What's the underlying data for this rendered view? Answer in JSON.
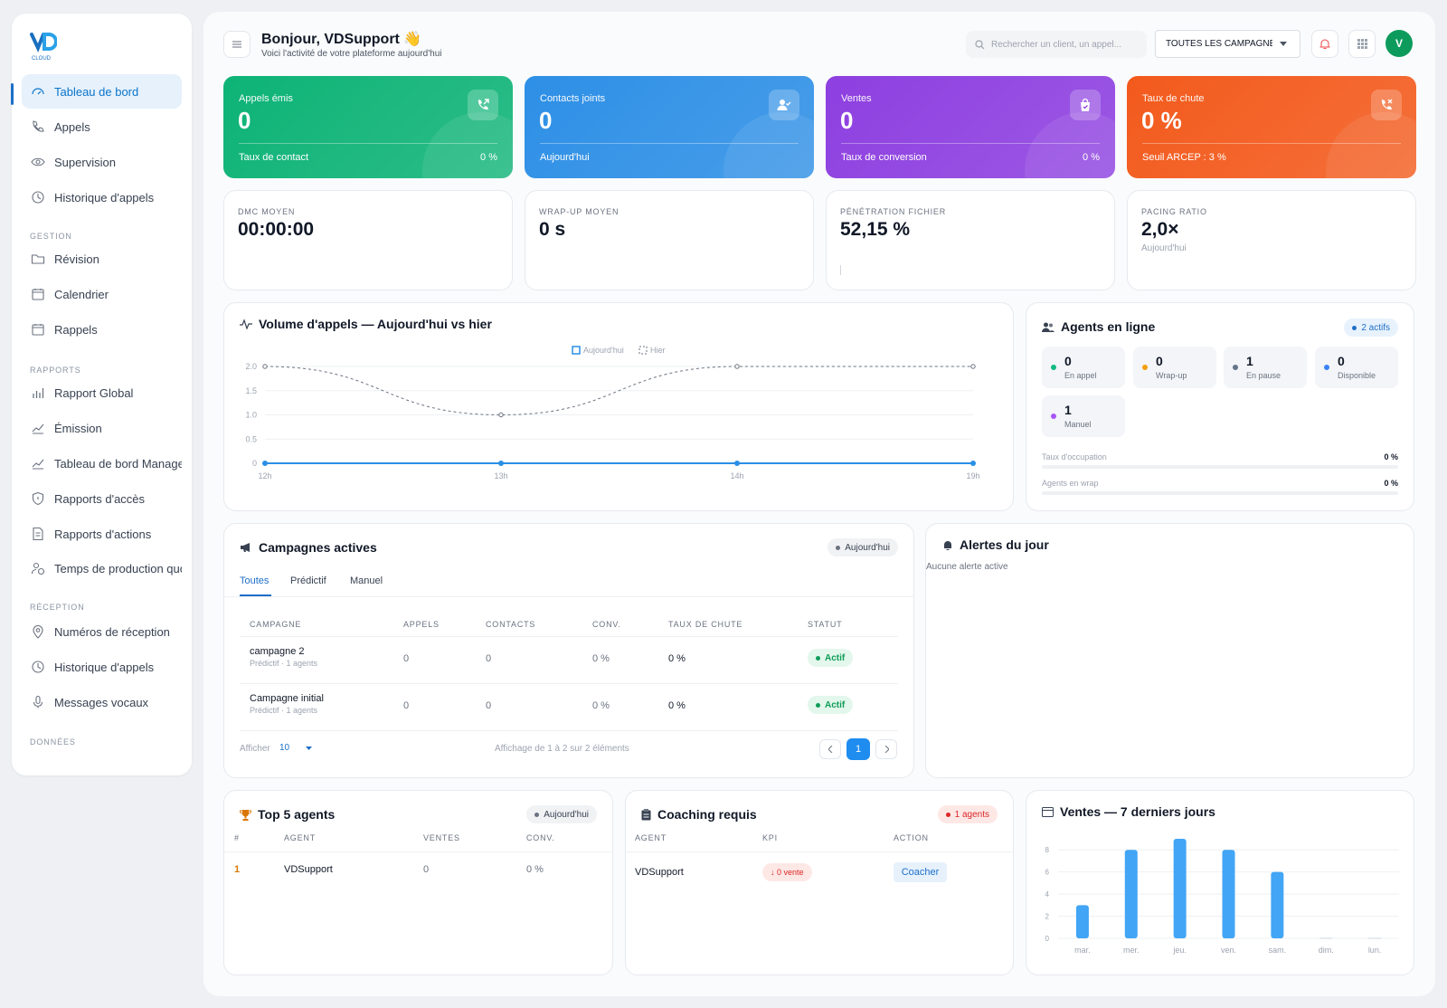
{
  "brand": {
    "logo": "VD",
    "sub": "CLOUD"
  },
  "sidebar": {
    "items": [
      {
        "label": "Tableau de bord",
        "icon": "gauge-icon"
      },
      {
        "label": "Appels",
        "icon": "phone-icon"
      },
      {
        "label": "Supervision",
        "icon": "eye-icon"
      },
      {
        "label": "Historique d'appels",
        "icon": "clock-icon"
      },
      {
        "label": "Révision",
        "icon": "folder-icon"
      },
      {
        "label": "Calendrier",
        "icon": "calendar-icon"
      },
      {
        "label": "Rappels",
        "icon": "calendar-icon"
      },
      {
        "label": "Rapport Global",
        "icon": "bar-chart-icon"
      },
      {
        "label": "Émission",
        "icon": "trend-icon"
      },
      {
        "label": "Tableau de bord Manager",
        "icon": "trend-icon"
      },
      {
        "label": "Rapports d'accès",
        "icon": "shield-icon"
      },
      {
        "label": "Rapports d'actions",
        "icon": "document-icon"
      },
      {
        "label": "Temps de production quotidien",
        "icon": "user-clock-icon"
      },
      {
        "label": "Numéros de réception",
        "icon": "pin-icon"
      },
      {
        "label": "Historique d'appels",
        "icon": "clock-icon"
      },
      {
        "label": "Messages vocaux",
        "icon": "mic-icon"
      }
    ],
    "sections": [
      "GESTION",
      "RAPPORTS",
      "RÉCEPTION",
      "DONNÉES"
    ]
  },
  "header": {
    "greeting": "Bonjour, VDSupport 👋",
    "subtitle": "Voici l'activité de votre plateforme aujourd'hui",
    "search_placeholder": "Rechercher un client, un appel...",
    "campaign_select": "TOUTES LES CAMPAGNES",
    "avatar": "V"
  },
  "kpis": [
    {
      "label": "Appels émis",
      "value": "0",
      "footer": "Taux de contact",
      "footer_value": "0 %",
      "color": "#0db376"
    },
    {
      "label": "Contacts joints",
      "value": "0",
      "footer": "Aujourd'hui",
      "footer_value": "",
      "color": "#2d8fe6"
    },
    {
      "label": "Ventes",
      "value": "0",
      "footer": "Taux de conversion",
      "footer_value": "0 %",
      "color": "#8d3fe0"
    },
    {
      "label": "Taux de chute",
      "value": "0 %",
      "footer": "Seuil ARCEP : 3 %",
      "footer_value": "",
      "color": "#f35a1c"
    }
  ],
  "stats": [
    {
      "label": "DMC MOYEN",
      "value": "00:00:00",
      "sub": ""
    },
    {
      "label": "WRAP-UP MOYEN",
      "value": "0 s",
      "sub": ""
    },
    {
      "label": "PÉNÉTRATION FICHIER",
      "value": "52,15 %",
      "sub": ""
    },
    {
      "label": "PACING RATIO",
      "value": "2,0×",
      "sub": "Aujourd'hui"
    }
  ],
  "volume": {
    "title": "Volume d'appels — Aujourd'hui vs hier",
    "legend_today": "Aujourd'hui",
    "legend_yesterday": "Hier"
  },
  "chart_data": [
    {
      "type": "line",
      "title": "Volume d'appels — Aujourd'hui vs hier",
      "x": [
        "12h",
        "13h",
        "14h",
        "19h"
      ],
      "series": [
        {
          "name": "Aujourd'hui",
          "values": [
            0,
            0,
            0,
            0
          ]
        },
        {
          "name": "Hier",
          "values": [
            2,
            1,
            2,
            2
          ]
        }
      ],
      "ylim": [
        0,
        2
      ],
      "yticks": [
        "0",
        "0.5",
        "1.0",
        "1.5",
        "2.0"
      ],
      "grid": true,
      "legend": "top-center"
    },
    {
      "type": "bar",
      "title": "Ventes — 7 derniers jours",
      "categories": [
        "mar.",
        "mer.",
        "jeu.",
        "ven.",
        "sam.",
        "dim.",
        "lun."
      ],
      "values": [
        3,
        8,
        9,
        8,
        6,
        0,
        0
      ],
      "ylim": [
        0,
        9
      ],
      "yticks": [
        "0",
        "2",
        "4",
        "6",
        "8"
      ],
      "grid": true
    }
  ],
  "agents": {
    "title": "Agents en ligne",
    "badge": "2 actifs",
    "tiles": [
      {
        "value": "0",
        "label": "En appel",
        "color": "#10b981"
      },
      {
        "value": "0",
        "label": "Wrap-up",
        "color": "#f59e0b"
      },
      {
        "value": "1",
        "label": "En pause",
        "color": "#64748b"
      },
      {
        "value": "0",
        "label": "Disponible",
        "color": "#3b82f6"
      },
      {
        "value": "1",
        "label": "Manuel",
        "color": "#a855f7"
      }
    ],
    "occupation_label": "Taux d'occupation",
    "occupation_value": "0 %",
    "occupation": 0,
    "wrap_label": "Agents en wrap",
    "wrap_value": "0 %",
    "wrap": 0
  },
  "campaigns": {
    "title": "Campagnes actives",
    "badge": "Aujourd'hui",
    "tabs": [
      "Toutes",
      "Prédictif",
      "Manuel"
    ],
    "headers": [
      "CAMPAGNE",
      "APPELS",
      "CONTACTS",
      "CONV.",
      "TAUX DE CHUTE",
      "STATUT"
    ],
    "rows": [
      {
        "name": "campagne 2",
        "sub": "Prédictif · 1 agents",
        "appels": "0",
        "contacts": "0",
        "conv": "0 %",
        "chute": "0 %",
        "statut": "Actif"
      },
      {
        "name": "Campagne initial",
        "sub": "Prédictif · 1 agents",
        "appels": "0",
        "contacts": "0",
        "conv": "0 %",
        "chute": "0 %",
        "statut": "Actif"
      }
    ],
    "show_label": "Afficher",
    "page_size": "10",
    "summary": "Affichage de 1 à 2 sur 2 éléments",
    "page": "1"
  },
  "alerts": {
    "title": "Alertes du jour",
    "empty": "Aucune alerte active"
  },
  "top_agents": {
    "title": "Top 5 agents",
    "badge": "Aujourd'hui",
    "headers": [
      "#",
      "AGENT",
      "VENTES",
      "CONV."
    ],
    "rows": [
      {
        "rank": "1",
        "agent": "VDSupport",
        "ventes": "0",
        "conv": "0 %"
      }
    ]
  },
  "coaching": {
    "title": "Coaching requis",
    "badge": "1 agents",
    "headers": [
      "AGENT",
      "KPI",
      "ACTION"
    ],
    "rows": [
      {
        "agent": "VDSupport",
        "kpi": "↓ 0 vente",
        "action": "Coacher"
      }
    ]
  },
  "sales": {
    "title": "Ventes — 7 derniers jours"
  }
}
